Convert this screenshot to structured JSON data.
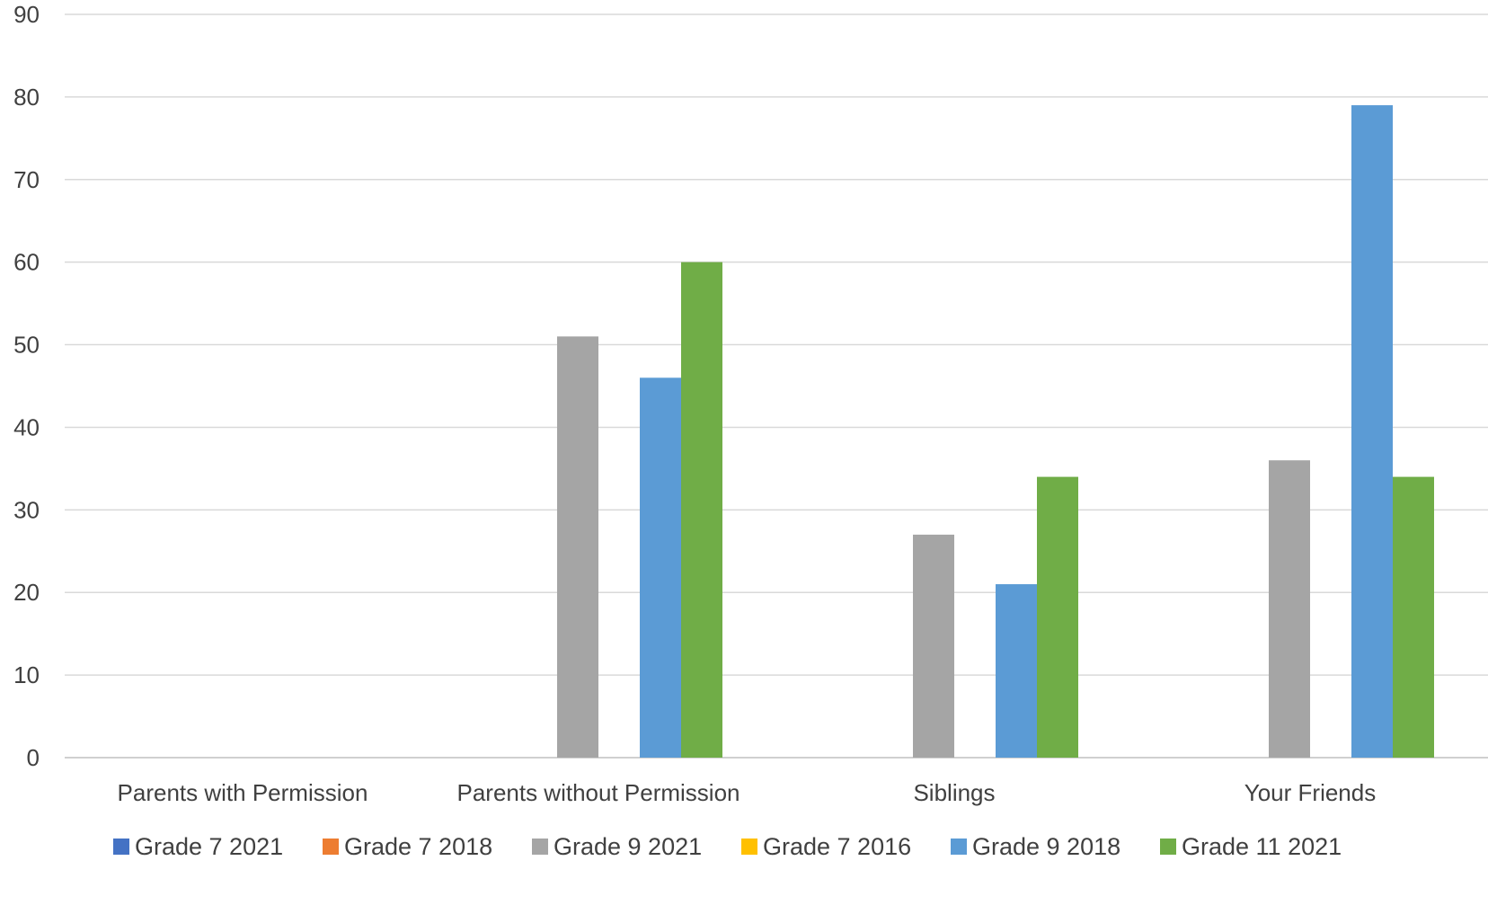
{
  "chart_data": {
    "type": "bar",
    "title": "",
    "xlabel": "",
    "ylabel": "",
    "ylim": [
      0,
      90
    ],
    "yticks": [
      "0",
      "10",
      "20",
      "30",
      "40",
      "50",
      "60",
      "70",
      "80",
      "90"
    ],
    "grid": true,
    "legend_position": "bottom",
    "categories": [
      "Parents with Permission",
      "Parents without Permission",
      "Siblings",
      "Your Friends"
    ],
    "series": [
      {
        "name": "Grade 7 2021",
        "color": "#4472C4",
        "values": [
          0,
          0,
          0,
          0
        ]
      },
      {
        "name": "Grade 7 2018",
        "color": "#ED7D31",
        "values": [
          0,
          0,
          0,
          0
        ]
      },
      {
        "name": "Grade 9 2021",
        "color": "#A5A5A5",
        "values": [
          0,
          51,
          27,
          36
        ]
      },
      {
        "name": "Grade 7 2016",
        "color": "#FFC000",
        "values": [
          0,
          0,
          0,
          0
        ]
      },
      {
        "name": "Grade 9 2018",
        "color": "#5B9BD5",
        "values": [
          0,
          46,
          21,
          79
        ]
      },
      {
        "name": "Grade 11 2021",
        "color": "#70AD47",
        "values": [
          0,
          60,
          34,
          34
        ]
      }
    ]
  }
}
